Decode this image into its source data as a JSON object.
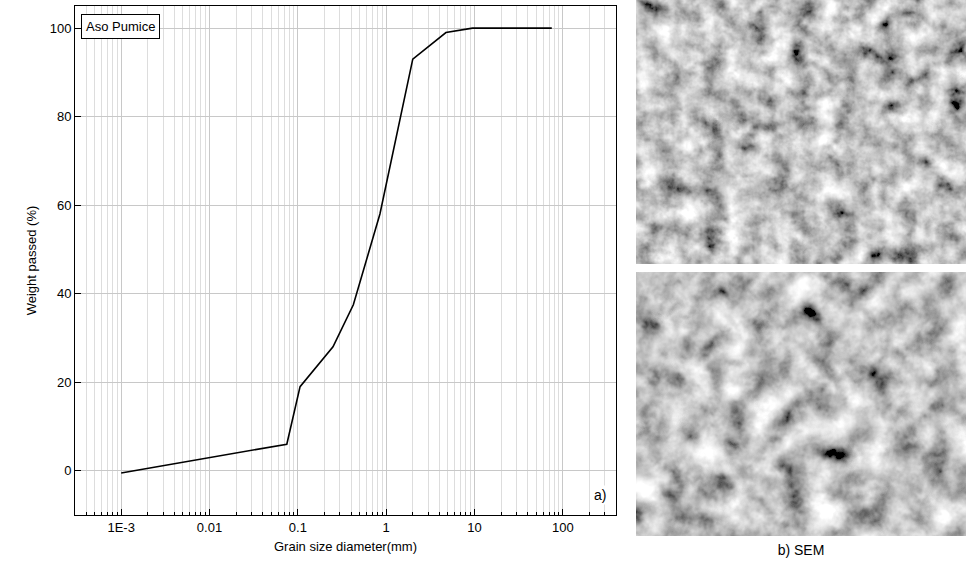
{
  "chart_data": {
    "type": "line",
    "xlabel": "Grain size diameter(mm)",
    "ylabel": "Weight passed (%)",
    "annotations": [
      "Aso Pumice",
      "a)"
    ],
    "x": [
      0.001,
      0.075,
      0.106,
      0.25,
      0.425,
      0.85,
      2,
      4.75,
      9.5,
      75
    ],
    "series": [
      {
        "name": "Aso Pumice",
        "color": "#000000",
        "values": [
          -0.5,
          6,
          19,
          28,
          37.5,
          58,
          93,
          99,
          100,
          100
        ]
      }
    ],
    "xlim": [
      0.0003,
      400
    ],
    "ylim": [
      -10,
      105
    ],
    "xticks": [
      {
        "value": 0.001,
        "label": "1E-3"
      },
      0.01,
      0.1,
      1,
      10,
      100
    ],
    "yticks": [
      0,
      20,
      40,
      60,
      80,
      100
    ],
    "log": "x",
    "grid": true
  },
  "sem_panel": {
    "caption": "b) SEM",
    "images": 2
  }
}
